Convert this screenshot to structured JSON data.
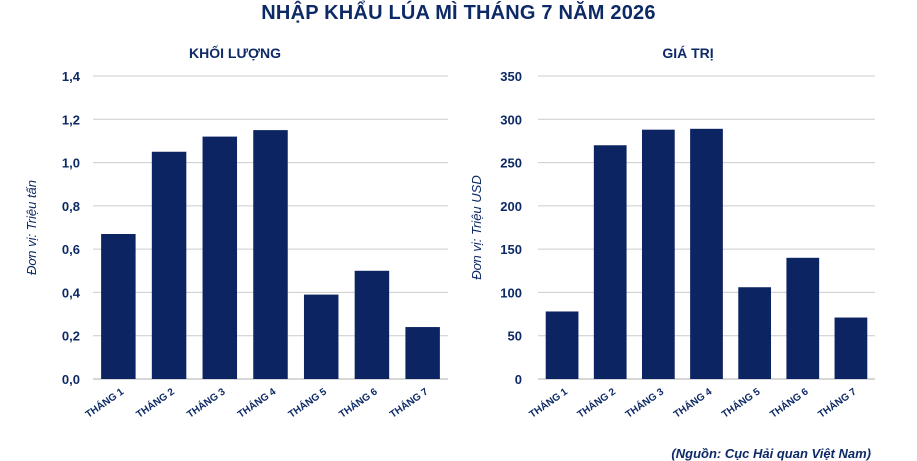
{
  "title": "NHẬP KHẨU LÚA MÌ THÁNG 7 NĂM 2026",
  "source": "(Nguồn: Cục Hải quan Việt Nam)",
  "colors": {
    "bar": "#0d2463",
    "text": "#0d2a66",
    "grid": "#cccccc"
  },
  "chart_data": [
    {
      "type": "bar",
      "title": "KHỐI LƯỢNG",
      "ylabel": "Đơn vị: Triệu tấn",
      "xlabel": "",
      "categories": [
        "THÁNG 1",
        "THÁNG 2",
        "THÁNG 3",
        "THÁNG 4",
        "THÁNG 5",
        "THÁNG 6",
        "THÁNG 7"
      ],
      "values": [
        0.67,
        1.05,
        1.12,
        1.15,
        0.39,
        0.5,
        0.24
      ],
      "ylim": [
        0,
        1.4
      ],
      "yticks": [
        "0,0",
        "0,2",
        "0,4",
        "0,6",
        "0,8",
        "1,0",
        "1,2",
        "1,4"
      ],
      "grid": true
    },
    {
      "type": "bar",
      "title": "GIÁ TRỊ",
      "ylabel": "Đơn vị: Triệu USD",
      "xlabel": "",
      "categories": [
        "THÁNG 1",
        "THÁNG 2",
        "THÁNG 3",
        "THÁNG 4",
        "THÁNG 5",
        "THÁNG 6",
        "THÁNG 7"
      ],
      "values": [
        78,
        270,
        288,
        289,
        106,
        140,
        71
      ],
      "ylim": [
        0,
        350
      ],
      "yticks": [
        "0",
        "50",
        "100",
        "150",
        "200",
        "250",
        "300",
        "350"
      ],
      "grid": true
    }
  ]
}
